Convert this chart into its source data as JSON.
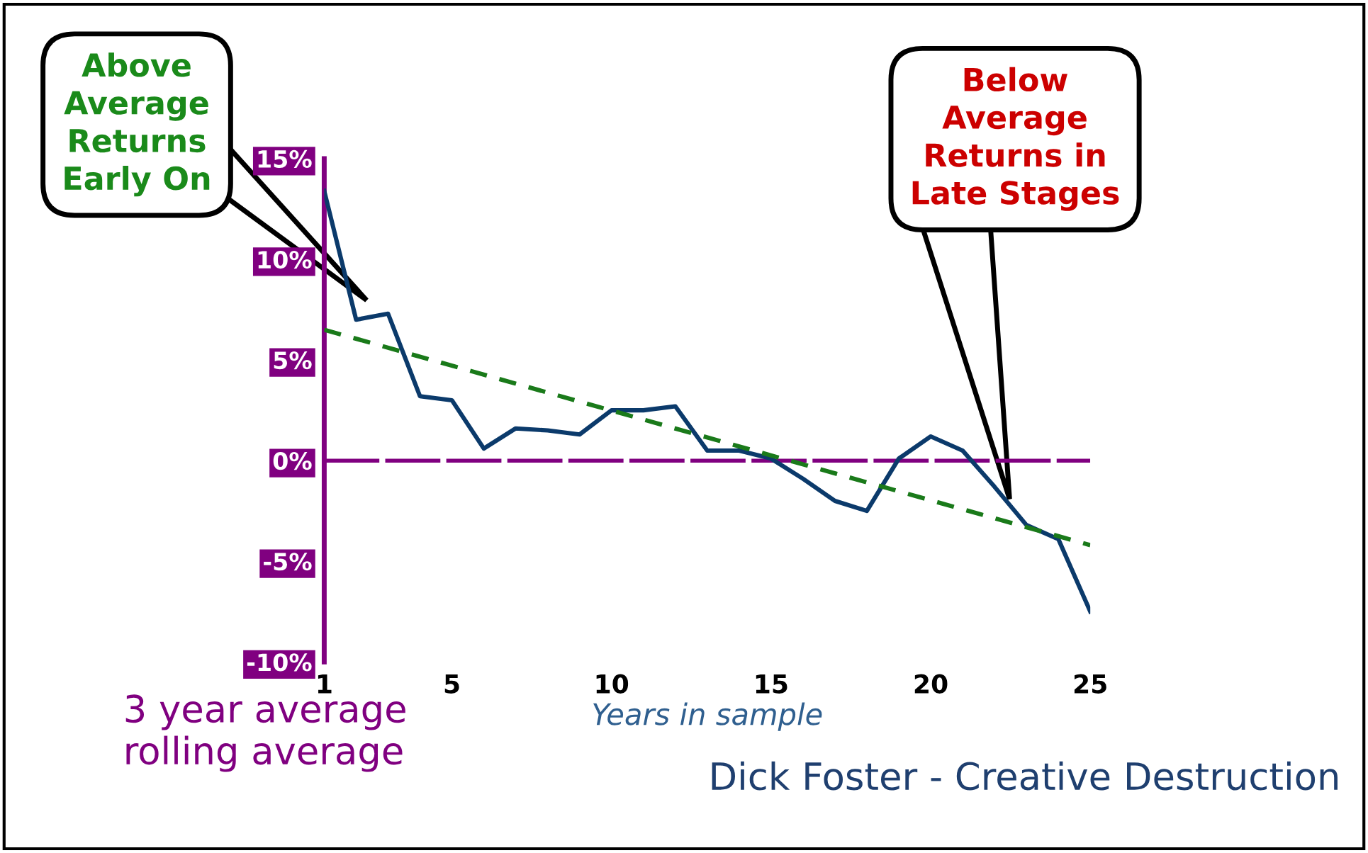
{
  "chart_data": {
    "type": "line",
    "xlabel": "Years in sample",
    "x": [
      1,
      2,
      3,
      4,
      5,
      6,
      7,
      8,
      9,
      10,
      11,
      12,
      13,
      14,
      15,
      16,
      17,
      18,
      19,
      20,
      21,
      22,
      23,
      24,
      25
    ],
    "xlim": [
      1,
      25
    ],
    "xticks": [
      1,
      5,
      10,
      15,
      20,
      25
    ],
    "ylim": [
      -10,
      15
    ],
    "yticks": [
      {
        "value": -10,
        "label": "-10%"
      },
      {
        "value": -5,
        "label": "-5%"
      },
      {
        "value": 0,
        "label": "0%"
      },
      {
        "value": 5,
        "label": "5%"
      },
      {
        "value": 10,
        "label": "10%"
      },
      {
        "value": 15,
        "label": "15%"
      }
    ],
    "series": [
      {
        "color": "#0b3a6b",
        "values": [
          13.4,
          7.0,
          7.3,
          3.2,
          3.0,
          0.6,
          1.6,
          1.5,
          1.3,
          2.5,
          2.5,
          2.7,
          0.5,
          0.5,
          0.1,
          -0.9,
          -2.0,
          -2.5,
          0.1,
          1.2,
          0.5,
          -1.3,
          -3.2,
          -3.9,
          -7.5
        ]
      },
      {
        "type": "line",
        "color": "#1a7a1a",
        "line_style": "dashed",
        "x": [
          1,
          25
        ],
        "values": [
          6.5,
          -4.2
        ]
      }
    ],
    "ref_lines": [
      {
        "axis": "y",
        "value": 0,
        "color": "#800080"
      }
    ],
    "grid": false,
    "legend": false,
    "marker": "none",
    "line_style": "solid",
    "annotations": [
      "Above\nAverage\nReturns\nEarly On",
      "Below\nAverage\nReturns in\nLate Stages",
      "3 year average\nrolling average",
      "Dick Foster - Creative Destruction"
    ]
  }
}
